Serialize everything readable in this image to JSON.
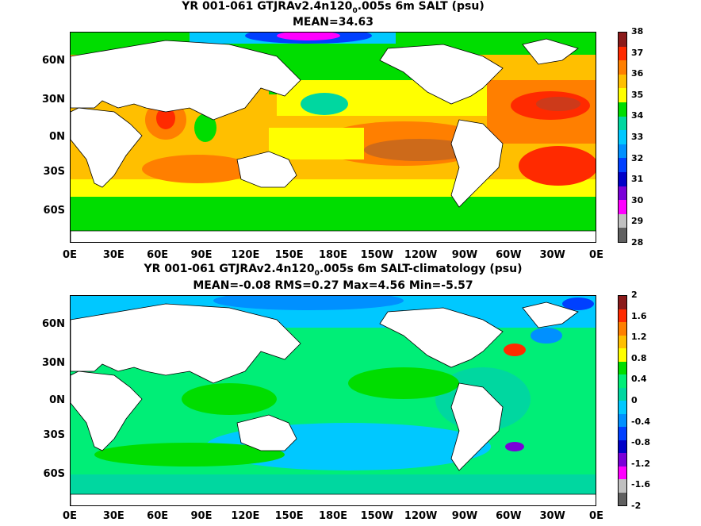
{
  "top": {
    "title_a": "YR 001-061 GTJRAv2.4n120",
    "title_sub": "0",
    "title_b": ".005s 6m SALT (psu)",
    "stats": "MEAN=34.63",
    "colorbar_labels": [
      "38",
      "37",
      "36",
      "35",
      "34",
      "33",
      "32",
      "31",
      "30",
      "29",
      "28"
    ],
    "colorbar_colors": [
      "#8b1a1a",
      "#ff2a00",
      "#ff7f00",
      "#ffbf00",
      "#ffff00",
      "#00dd00",
      "#00d7a0",
      "#00c8ff",
      "#0090ff",
      "#0040ff",
      "#0000c8",
      "#7a00d8",
      "#ff00ff",
      "#c0c0c0",
      "#606060"
    ]
  },
  "bottom": {
    "title_a": "YR 001-061 GTJRAv2.4n120",
    "title_sub": "0",
    "title_b": ".005s 6m SALT-climatology (psu)",
    "stats": "MEAN=-0.08   RMS=0.27   Max=4.56   Min=-5.57",
    "colorbar_labels": [
      "2",
      "1.6",
      "1.2",
      "0.8",
      "0.4",
      "0",
      "-0.4",
      "-0.8",
      "-1.2",
      "-1.6",
      "-2"
    ],
    "colorbar_colors": [
      "#8b1a1a",
      "#ff2a00",
      "#ff7f00",
      "#ffbf00",
      "#ffff00",
      "#00dd00",
      "#00ee77",
      "#00d7a0",
      "#00c8ff",
      "#0090ff",
      "#0040ff",
      "#0000c8",
      "#7a00d8",
      "#ff00ff",
      "#c0c0c0",
      "#606060"
    ]
  },
  "lat_labels": [
    "60N",
    "30N",
    "0N",
    "30S",
    "60S"
  ],
  "lon_labels": [
    "0E",
    "30E",
    "60E",
    "90E",
    "120E",
    "150E",
    "180E",
    "150W",
    "120W",
    "90W",
    "60W",
    "30W",
    "0E"
  ]
}
